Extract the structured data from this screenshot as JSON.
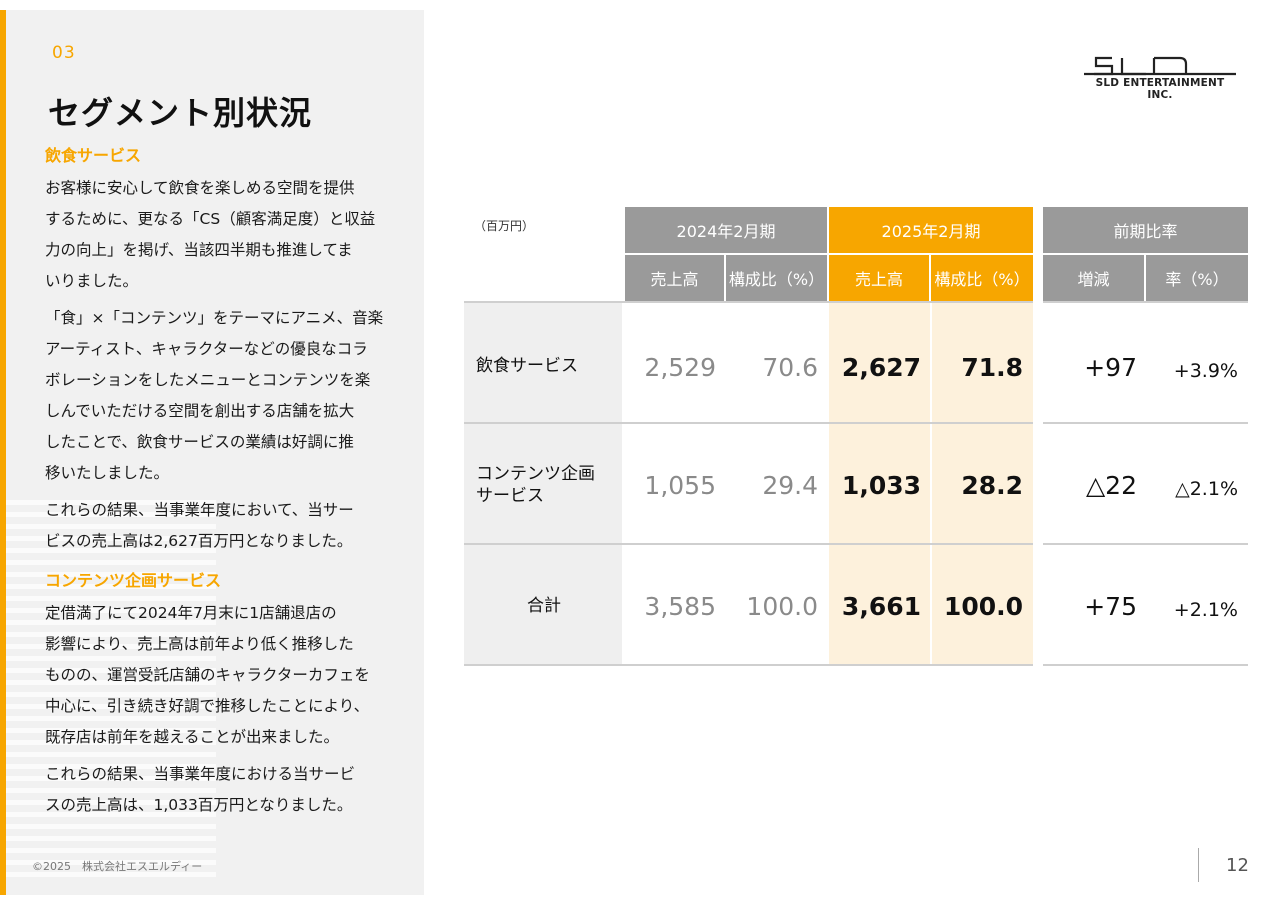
{
  "section_number": "03",
  "title": "セグメント別状況",
  "segments": [
    {
      "heading": "飲食サービス",
      "paragraphs": [
        [
          "お客様に安心して飲食を楽しめる空間を提供",
          "するために、更なる「CS（顧客満足度）と収益",
          "力の向上」を掲げ、当該四半期も推進してま",
          "いりました。"
        ],
        [
          "「食」×「コンテンツ」をテーマにアニメ、音楽",
          "アーティスト、キャラクターなどの優良なコラ",
          "ボレーションをしたメニューとコンテンツを楽",
          "しんでいただける空間を創出する店舗を拡大",
          "したことで、飲食サービスの業績は好調に推",
          "移いたしました。"
        ],
        [
          "これらの結果、当事業年度において、当サー",
          "ビスの売上高は2,627百万円となりました。"
        ]
      ]
    },
    {
      "heading": "コンテンツ企画サービス",
      "paragraphs": [
        [
          "定借満了にて2024年7月末に1店舗退店の",
          "影響により、売上高は前年より低く推移した",
          "ものの、運営受託店舗のキャラクターカフェを",
          "中心に、引き続き好調で推移したことにより、",
          "既存店は前年を越えることが出来ました。"
        ],
        [
          "これらの結果、当事業年度における当サービ",
          "スの売上高は、1,033百万円となりました。"
        ]
      ]
    }
  ],
  "copyright": "©2025　株式会社エスエルディー",
  "logo_text": "SLD ENTERTAINMENT INC.",
  "table": {
    "unit": "（百万円）",
    "group_headers": [
      "2024年2月期",
      "2025年2月期",
      "前期比率"
    ],
    "sub_headers": [
      "売上高",
      "構成比（%）",
      "売上高",
      "構成比（%）",
      "増減",
      "率（%）"
    ],
    "rows": [
      {
        "label": [
          "飲食サービス"
        ],
        "sales_2024": "2,529",
        "ratio_2024": "70.6",
        "sales_2025": "2,627",
        "ratio_2025": "71.8",
        "change": "+97",
        "rate": "+3.9%"
      },
      {
        "label": [
          "コンテンツ企画",
          "サービス"
        ],
        "sales_2024": "1,055",
        "ratio_2024": "29.4",
        "sales_2025": "1,033",
        "ratio_2025": "28.2",
        "change": "△22",
        "rate": "△2.1%"
      },
      {
        "label": [
          "合計"
        ],
        "sales_2024": "3,585",
        "ratio_2024": "100.0",
        "sales_2025": "3,661",
        "ratio_2025": "100.0",
        "change": "+75",
        "rate": "+2.1%"
      }
    ]
  },
  "page_number": "12",
  "colors": {
    "accent": "#f7a600",
    "header_gray": "#9a9a9a",
    "highlight": "#fdf1dc"
  }
}
